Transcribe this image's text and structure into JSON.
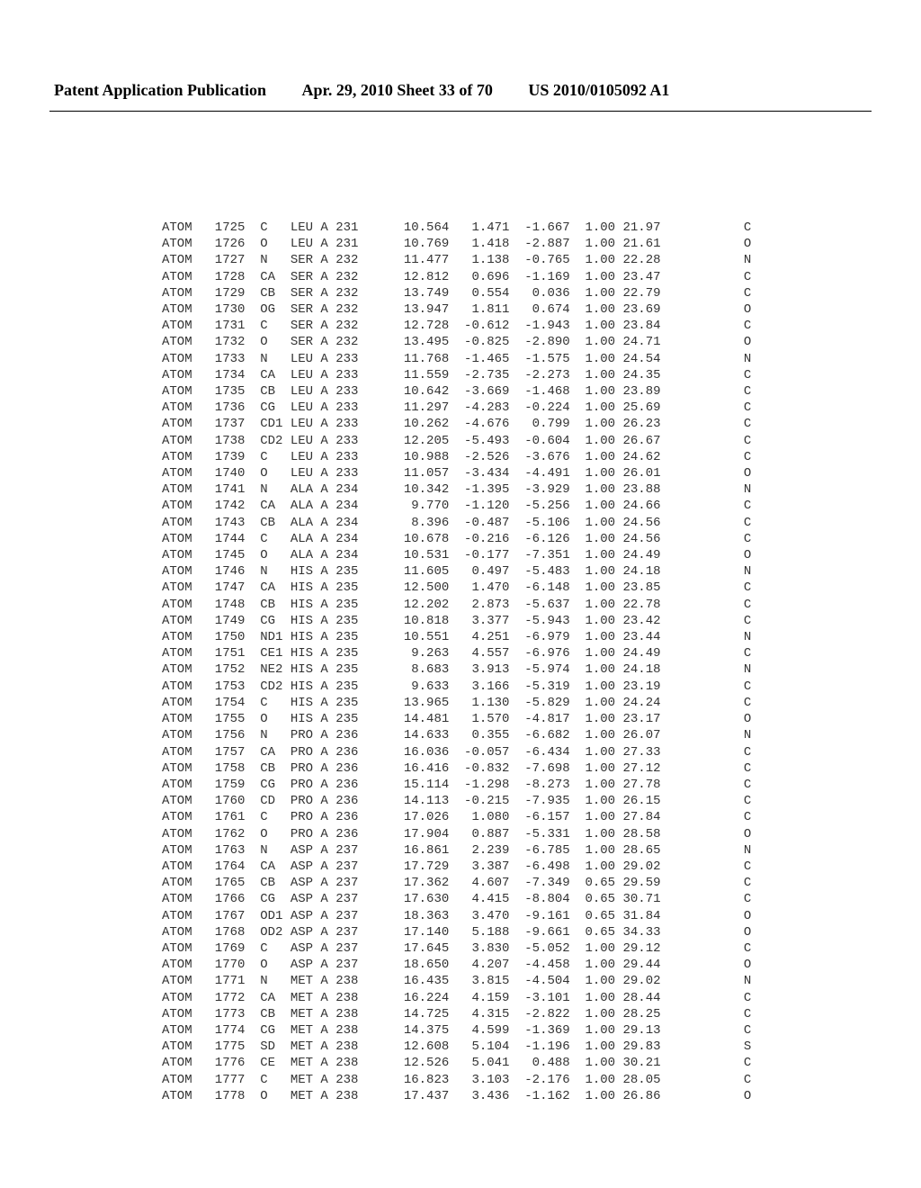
{
  "header": {
    "publication": "Patent Application Publication",
    "date": "Apr. 29, 2010  Sheet 33 of 70",
    "docnum": "US 2010/0105092 A1"
  },
  "pdb_font_size_pt": 10.5,
  "pdb_rows": [
    {
      "rec": "ATOM",
      "serial": 1725,
      "name": "C  ",
      "res": "LEU",
      "chain": "A",
      "seq": 231,
      "x": 10.564,
      "y": 1.471,
      "z": -1.667,
      "occ": 1.0,
      "b": 21.97,
      "elem": "C"
    },
    {
      "rec": "ATOM",
      "serial": 1726,
      "name": "O  ",
      "res": "LEU",
      "chain": "A",
      "seq": 231,
      "x": 10.769,
      "y": 1.418,
      "z": -2.887,
      "occ": 1.0,
      "b": 21.61,
      "elem": "O"
    },
    {
      "rec": "ATOM",
      "serial": 1727,
      "name": "N  ",
      "res": "SER",
      "chain": "A",
      "seq": 232,
      "x": 11.477,
      "y": 1.138,
      "z": -0.765,
      "occ": 1.0,
      "b": 22.28,
      "elem": "N"
    },
    {
      "rec": "ATOM",
      "serial": 1728,
      "name": "CA ",
      "res": "SER",
      "chain": "A",
      "seq": 232,
      "x": 12.812,
      "y": 0.696,
      "z": -1.169,
      "occ": 1.0,
      "b": 23.47,
      "elem": "C"
    },
    {
      "rec": "ATOM",
      "serial": 1729,
      "name": "CB ",
      "res": "SER",
      "chain": "A",
      "seq": 232,
      "x": 13.749,
      "y": 0.554,
      "z": 0.036,
      "occ": 1.0,
      "b": 22.79,
      "elem": "C"
    },
    {
      "rec": "ATOM",
      "serial": 1730,
      "name": "OG ",
      "res": "SER",
      "chain": "A",
      "seq": 232,
      "x": 13.947,
      "y": 1.811,
      "z": 0.674,
      "occ": 1.0,
      "b": 23.69,
      "elem": "O"
    },
    {
      "rec": "ATOM",
      "serial": 1731,
      "name": "C  ",
      "res": "SER",
      "chain": "A",
      "seq": 232,
      "x": 12.728,
      "y": -0.612,
      "z": -1.943,
      "occ": 1.0,
      "b": 23.84,
      "elem": "C"
    },
    {
      "rec": "ATOM",
      "serial": 1732,
      "name": "O  ",
      "res": "SER",
      "chain": "A",
      "seq": 232,
      "x": 13.495,
      "y": -0.825,
      "z": -2.89,
      "occ": 1.0,
      "b": 24.71,
      "elem": "O"
    },
    {
      "rec": "ATOM",
      "serial": 1733,
      "name": "N  ",
      "res": "LEU",
      "chain": "A",
      "seq": 233,
      "x": 11.768,
      "y": -1.465,
      "z": -1.575,
      "occ": 1.0,
      "b": 24.54,
      "elem": "N"
    },
    {
      "rec": "ATOM",
      "serial": 1734,
      "name": "CA ",
      "res": "LEU",
      "chain": "A",
      "seq": 233,
      "x": 11.559,
      "y": -2.735,
      "z": -2.273,
      "occ": 1.0,
      "b": 24.35,
      "elem": "C"
    },
    {
      "rec": "ATOM",
      "serial": 1735,
      "name": "CB ",
      "res": "LEU",
      "chain": "A",
      "seq": 233,
      "x": 10.642,
      "y": -3.669,
      "z": -1.468,
      "occ": 1.0,
      "b": 23.89,
      "elem": "C"
    },
    {
      "rec": "ATOM",
      "serial": 1736,
      "name": "CG ",
      "res": "LEU",
      "chain": "A",
      "seq": 233,
      "x": 11.297,
      "y": -4.283,
      "z": -0.224,
      "occ": 1.0,
      "b": 25.69,
      "elem": "C"
    },
    {
      "rec": "ATOM",
      "serial": 1737,
      "name": "CD1",
      "res": "LEU",
      "chain": "A",
      "seq": 233,
      "x": 10.262,
      "y": -4.676,
      "z": 0.799,
      "occ": 1.0,
      "b": 26.23,
      "elem": "C"
    },
    {
      "rec": "ATOM",
      "serial": 1738,
      "name": "CD2",
      "res": "LEU",
      "chain": "A",
      "seq": 233,
      "x": 12.205,
      "y": -5.493,
      "z": -0.604,
      "occ": 1.0,
      "b": 26.67,
      "elem": "C"
    },
    {
      "rec": "ATOM",
      "serial": 1739,
      "name": "C  ",
      "res": "LEU",
      "chain": "A",
      "seq": 233,
      "x": 10.988,
      "y": -2.526,
      "z": -3.676,
      "occ": 1.0,
      "b": 24.62,
      "elem": "C"
    },
    {
      "rec": "ATOM",
      "serial": 1740,
      "name": "O  ",
      "res": "LEU",
      "chain": "A",
      "seq": 233,
      "x": 11.057,
      "y": -3.434,
      "z": -4.491,
      "occ": 1.0,
      "b": 26.01,
      "elem": "O"
    },
    {
      "rec": "ATOM",
      "serial": 1741,
      "name": "N  ",
      "res": "ALA",
      "chain": "A",
      "seq": 234,
      "x": 10.342,
      "y": -1.395,
      "z": -3.929,
      "occ": 1.0,
      "b": 23.88,
      "elem": "N"
    },
    {
      "rec": "ATOM",
      "serial": 1742,
      "name": "CA ",
      "res": "ALA",
      "chain": "A",
      "seq": 234,
      "x": 9.77,
      "y": -1.12,
      "z": -5.256,
      "occ": 1.0,
      "b": 24.66,
      "elem": "C"
    },
    {
      "rec": "ATOM",
      "serial": 1743,
      "name": "CB ",
      "res": "ALA",
      "chain": "A",
      "seq": 234,
      "x": 8.396,
      "y": -0.487,
      "z": -5.106,
      "occ": 1.0,
      "b": 24.56,
      "elem": "C"
    },
    {
      "rec": "ATOM",
      "serial": 1744,
      "name": "C  ",
      "res": "ALA",
      "chain": "A",
      "seq": 234,
      "x": 10.678,
      "y": -0.216,
      "z": -6.126,
      "occ": 1.0,
      "b": 24.56,
      "elem": "C"
    },
    {
      "rec": "ATOM",
      "serial": 1745,
      "name": "O  ",
      "res": "ALA",
      "chain": "A",
      "seq": 234,
      "x": 10.531,
      "y": -0.177,
      "z": -7.351,
      "occ": 1.0,
      "b": 24.49,
      "elem": "O"
    },
    {
      "rec": "ATOM",
      "serial": 1746,
      "name": "N  ",
      "res": "HIS",
      "chain": "A",
      "seq": 235,
      "x": 11.605,
      "y": 0.497,
      "z": -5.483,
      "occ": 1.0,
      "b": 24.18,
      "elem": "N"
    },
    {
      "rec": "ATOM",
      "serial": 1747,
      "name": "CA ",
      "res": "HIS",
      "chain": "A",
      "seq": 235,
      "x": 12.5,
      "y": 1.47,
      "z": -6.148,
      "occ": 1.0,
      "b": 23.85,
      "elem": "C"
    },
    {
      "rec": "ATOM",
      "serial": 1748,
      "name": "CB ",
      "res": "HIS",
      "chain": "A",
      "seq": 235,
      "x": 12.202,
      "y": 2.873,
      "z": -5.637,
      "occ": 1.0,
      "b": 22.78,
      "elem": "C"
    },
    {
      "rec": "ATOM",
      "serial": 1749,
      "name": "CG ",
      "res": "HIS",
      "chain": "A",
      "seq": 235,
      "x": 10.818,
      "y": 3.377,
      "z": -5.943,
      "occ": 1.0,
      "b": 23.42,
      "elem": "C"
    },
    {
      "rec": "ATOM",
      "serial": 1750,
      "name": "ND1",
      "res": "HIS",
      "chain": "A",
      "seq": 235,
      "x": 10.551,
      "y": 4.251,
      "z": -6.979,
      "occ": 1.0,
      "b": 23.44,
      "elem": "N"
    },
    {
      "rec": "ATOM",
      "serial": 1751,
      "name": "CE1",
      "res": "HIS",
      "chain": "A",
      "seq": 235,
      "x": 9.263,
      "y": 4.557,
      "z": -6.976,
      "occ": 1.0,
      "b": 24.49,
      "elem": "C"
    },
    {
      "rec": "ATOM",
      "serial": 1752,
      "name": "NE2",
      "res": "HIS",
      "chain": "A",
      "seq": 235,
      "x": 8.683,
      "y": 3.913,
      "z": -5.974,
      "occ": 1.0,
      "b": 24.18,
      "elem": "N"
    },
    {
      "rec": "ATOM",
      "serial": 1753,
      "name": "CD2",
      "res": "HIS",
      "chain": "A",
      "seq": 235,
      "x": 9.633,
      "y": 3.166,
      "z": -5.319,
      "occ": 1.0,
      "b": 23.19,
      "elem": "C"
    },
    {
      "rec": "ATOM",
      "serial": 1754,
      "name": "C  ",
      "res": "HIS",
      "chain": "A",
      "seq": 235,
      "x": 13.965,
      "y": 1.13,
      "z": -5.829,
      "occ": 1.0,
      "b": 24.24,
      "elem": "C"
    },
    {
      "rec": "ATOM",
      "serial": 1755,
      "name": "O  ",
      "res": "HIS",
      "chain": "A",
      "seq": 235,
      "x": 14.481,
      "y": 1.57,
      "z": -4.817,
      "occ": 1.0,
      "b": 23.17,
      "elem": "O"
    },
    {
      "rec": "ATOM",
      "serial": 1756,
      "name": "N  ",
      "res": "PRO",
      "chain": "A",
      "seq": 236,
      "x": 14.633,
      "y": 0.355,
      "z": -6.682,
      "occ": 1.0,
      "b": 26.07,
      "elem": "N"
    },
    {
      "rec": "ATOM",
      "serial": 1757,
      "name": "CA ",
      "res": "PRO",
      "chain": "A",
      "seq": 236,
      "x": 16.036,
      "y": -0.057,
      "z": -6.434,
      "occ": 1.0,
      "b": 27.33,
      "elem": "C"
    },
    {
      "rec": "ATOM",
      "serial": 1758,
      "name": "CB ",
      "res": "PRO",
      "chain": "A",
      "seq": 236,
      "x": 16.416,
      "y": -0.832,
      "z": -7.698,
      "occ": 1.0,
      "b": 27.12,
      "elem": "C"
    },
    {
      "rec": "ATOM",
      "serial": 1759,
      "name": "CG ",
      "res": "PRO",
      "chain": "A",
      "seq": 236,
      "x": 15.114,
      "y": -1.298,
      "z": -8.273,
      "occ": 1.0,
      "b": 27.78,
      "elem": "C"
    },
    {
      "rec": "ATOM",
      "serial": 1760,
      "name": "CD ",
      "res": "PRO",
      "chain": "A",
      "seq": 236,
      "x": 14.113,
      "y": -0.215,
      "z": -7.935,
      "occ": 1.0,
      "b": 26.15,
      "elem": "C"
    },
    {
      "rec": "ATOM",
      "serial": 1761,
      "name": "C  ",
      "res": "PRO",
      "chain": "A",
      "seq": 236,
      "x": 17.026,
      "y": 1.08,
      "z": -6.157,
      "occ": 1.0,
      "b": 27.84,
      "elem": "C"
    },
    {
      "rec": "ATOM",
      "serial": 1762,
      "name": "O  ",
      "res": "PRO",
      "chain": "A",
      "seq": 236,
      "x": 17.904,
      "y": 0.887,
      "z": -5.331,
      "occ": 1.0,
      "b": 28.58,
      "elem": "O"
    },
    {
      "rec": "ATOM",
      "serial": 1763,
      "name": "N  ",
      "res": "ASP",
      "chain": "A",
      "seq": 237,
      "x": 16.861,
      "y": 2.239,
      "z": -6.785,
      "occ": 1.0,
      "b": 28.65,
      "elem": "N"
    },
    {
      "rec": "ATOM",
      "serial": 1764,
      "name": "CA ",
      "res": "ASP",
      "chain": "A",
      "seq": 237,
      "x": 17.729,
      "y": 3.387,
      "z": -6.498,
      "occ": 1.0,
      "b": 29.02,
      "elem": "C"
    },
    {
      "rec": "ATOM",
      "serial": 1765,
      "name": "CB ",
      "res": "ASP",
      "chain": "A",
      "seq": 237,
      "x": 17.362,
      "y": 4.607,
      "z": -7.349,
      "occ": 0.65,
      "b": 29.59,
      "elem": "C"
    },
    {
      "rec": "ATOM",
      "serial": 1766,
      "name": "CG ",
      "res": "ASP",
      "chain": "A",
      "seq": 237,
      "x": 17.63,
      "y": 4.415,
      "z": -8.804,
      "occ": 0.65,
      "b": 30.71,
      "elem": "C"
    },
    {
      "rec": "ATOM",
      "serial": 1767,
      "name": "OD1",
      "res": "ASP",
      "chain": "A",
      "seq": 237,
      "x": 18.363,
      "y": 3.47,
      "z": -9.161,
      "occ": 0.65,
      "b": 31.84,
      "elem": "O"
    },
    {
      "rec": "ATOM",
      "serial": 1768,
      "name": "OD2",
      "res": "ASP",
      "chain": "A",
      "seq": 237,
      "x": 17.14,
      "y": 5.188,
      "z": -9.661,
      "occ": 0.65,
      "b": 34.33,
      "elem": "O"
    },
    {
      "rec": "ATOM",
      "serial": 1769,
      "name": "C  ",
      "res": "ASP",
      "chain": "A",
      "seq": 237,
      "x": 17.645,
      "y": 3.83,
      "z": -5.052,
      "occ": 1.0,
      "b": 29.12,
      "elem": "C"
    },
    {
      "rec": "ATOM",
      "serial": 1770,
      "name": "O  ",
      "res": "ASP",
      "chain": "A",
      "seq": 237,
      "x": 18.65,
      "y": 4.207,
      "z": -4.458,
      "occ": 1.0,
      "b": 29.44,
      "elem": "O"
    },
    {
      "rec": "ATOM",
      "serial": 1771,
      "name": "N  ",
      "res": "MET",
      "chain": "A",
      "seq": 238,
      "x": 16.435,
      "y": 3.815,
      "z": -4.504,
      "occ": 1.0,
      "b": 29.02,
      "elem": "N"
    },
    {
      "rec": "ATOM",
      "serial": 1772,
      "name": "CA ",
      "res": "MET",
      "chain": "A",
      "seq": 238,
      "x": 16.224,
      "y": 4.159,
      "z": -3.101,
      "occ": 1.0,
      "b": 28.44,
      "elem": "C"
    },
    {
      "rec": "ATOM",
      "serial": 1773,
      "name": "CB ",
      "res": "MET",
      "chain": "A",
      "seq": 238,
      "x": 14.725,
      "y": 4.315,
      "z": -2.822,
      "occ": 1.0,
      "b": 28.25,
      "elem": "C"
    },
    {
      "rec": "ATOM",
      "serial": 1774,
      "name": "CG ",
      "res": "MET",
      "chain": "A",
      "seq": 238,
      "x": 14.375,
      "y": 4.599,
      "z": -1.369,
      "occ": 1.0,
      "b": 29.13,
      "elem": "C"
    },
    {
      "rec": "ATOM",
      "serial": 1775,
      "name": "SD ",
      "res": "MET",
      "chain": "A",
      "seq": 238,
      "x": 12.608,
      "y": 5.104,
      "z": -1.196,
      "occ": 1.0,
      "b": 29.83,
      "elem": "S"
    },
    {
      "rec": "ATOM",
      "serial": 1776,
      "name": "CE ",
      "res": "MET",
      "chain": "A",
      "seq": 238,
      "x": 12.526,
      "y": 5.041,
      "z": 0.488,
      "occ": 1.0,
      "b": 30.21,
      "elem": "C"
    },
    {
      "rec": "ATOM",
      "serial": 1777,
      "name": "C  ",
      "res": "MET",
      "chain": "A",
      "seq": 238,
      "x": 16.823,
      "y": 3.103,
      "z": -2.176,
      "occ": 1.0,
      "b": 28.05,
      "elem": "C"
    },
    {
      "rec": "ATOM",
      "serial": 1778,
      "name": "O  ",
      "res": "MET",
      "chain": "A",
      "seq": 238,
      "x": 17.437,
      "y": 3.436,
      "z": -1.162,
      "occ": 1.0,
      "b": 26.86,
      "elem": "O"
    }
  ]
}
